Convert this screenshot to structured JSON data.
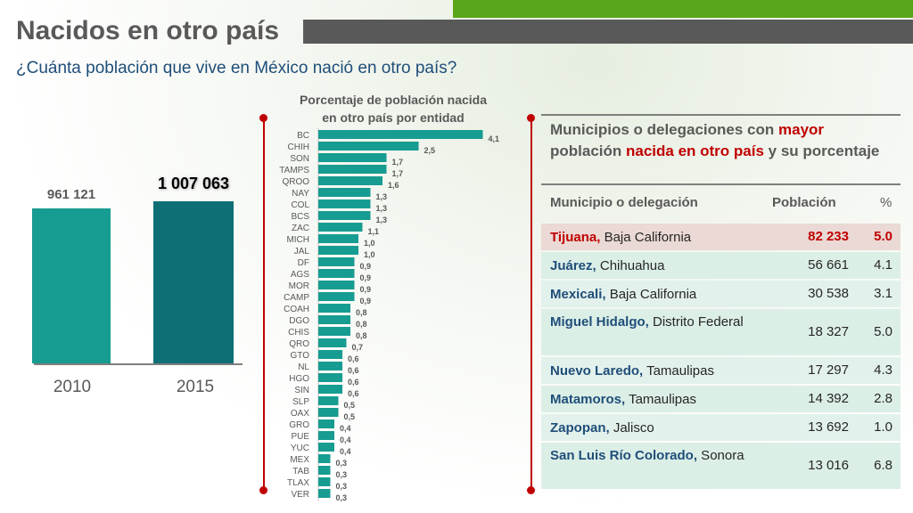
{
  "header": {
    "title": "Nacidos en otro país",
    "subtitle": "¿Cuánta población que vive en México nació en otro país?"
  },
  "colors": {
    "teal": "#179c91",
    "dark_teal": "#0e6f74",
    "accent_red": "#c00000",
    "green": "#5aa61a",
    "gray": "#595959"
  },
  "chart_data": [
    {
      "type": "bar",
      "categories": [
        "2010",
        "2015"
      ],
      "values": [
        961121,
        1007063
      ],
      "value_labels": [
        "961 121",
        "1 007 063"
      ],
      "title": "",
      "xlabel": "",
      "ylabel": ""
    },
    {
      "type": "bar",
      "orientation": "horizontal",
      "title": "Porcentaje de población nacida en otro país por entidad",
      "title_lines": [
        "Porcentaje de población nacida",
        "en otro país por entidad"
      ],
      "categories": [
        "BC",
        "CHIH",
        "SON",
        "TAMPS",
        "QROO",
        "NAY",
        "COL",
        "BCS",
        "ZAC",
        "MICH",
        "JAL",
        "DF",
        "AGS",
        "MOR",
        "CAMP",
        "COAH",
        "DGO",
        "CHIS",
        "QRO",
        "GTO",
        "NL",
        "HGO",
        "SIN",
        "SLP",
        "OAX",
        "GRO",
        "PUE",
        "YUC",
        "MEX",
        "TAB",
        "TLAX",
        "VER"
      ],
      "values": [
        4.1,
        2.5,
        1.7,
        1.7,
        1.6,
        1.3,
        1.3,
        1.3,
        1.1,
        1.0,
        1.0,
        0.9,
        0.9,
        0.9,
        0.9,
        0.8,
        0.8,
        0.8,
        0.7,
        0.6,
        0.6,
        0.6,
        0.6,
        0.5,
        0.5,
        0.4,
        0.4,
        0.4,
        0.3,
        0.3,
        0.3,
        0.3
      ],
      "value_labels": [
        "4,1",
        "2,5",
        "1,7",
        "1,7",
        "1,6",
        "1,3",
        "1,3",
        "1,3",
        "1,1",
        "1,0",
        "1,0",
        "0,9",
        "0,9",
        "0,9",
        "0,9",
        "0,8",
        "0,8",
        "0,8",
        "0,7",
        "0,6",
        "0,6",
        "0,6",
        "0,6",
        "0,5",
        "0,5",
        "0,4",
        "0,4",
        "0,4",
        "0,3",
        "0,3",
        "0,3",
        "0,3"
      ]
    },
    {
      "type": "table",
      "title_parts": [
        "Municipios o delegaciones con ",
        "mayor",
        " población ",
        "nacida en otro país",
        " y su porcentaje"
      ],
      "columns": [
        "Municipio o delegación",
        "Población",
        "%"
      ],
      "rows": [
        {
          "name": "Tijuana,",
          "state": " Baja California",
          "population": "82 233",
          "percent": "5.0",
          "highlight": true
        },
        {
          "name": "Juárez,",
          "state": " Chihuahua",
          "population": "56 661",
          "percent": "4.1"
        },
        {
          "name": "Mexicali,",
          "state": " Baja California",
          "population": "30 538",
          "percent": "3.1"
        },
        {
          "name": "Miguel Hidalgo,",
          "state": " Distrito Federal",
          "population": "18 327",
          "percent": "5.0"
        },
        {
          "name": "Nuevo Laredo,",
          "state": " Tamaulipas",
          "population": "17 297",
          "percent": "4.3"
        },
        {
          "name": "Matamoros,",
          "state": " Tamaulipas",
          "population": "14 392",
          "percent": "2.8"
        },
        {
          "name": "Zapopan,",
          "state": " Jalisco",
          "population": "13 692",
          "percent": "1.0"
        },
        {
          "name": "San Luis Río Colorado,",
          "state": " Sonora",
          "population": "13 016",
          "percent": "6.8"
        }
      ]
    }
  ]
}
